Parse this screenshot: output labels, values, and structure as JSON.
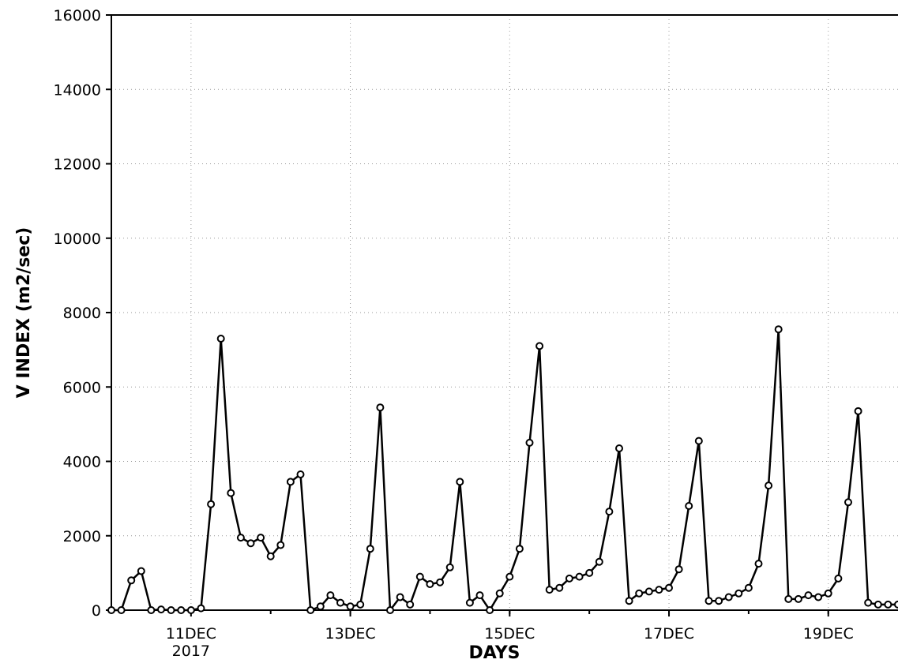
{
  "chart_data": {
    "type": "line",
    "xlabel": "DAYS",
    "ylabel": "V INDEX (m2/sec)",
    "x_start": "2017-12-10T00:00",
    "x_end": "2017-12-19T21:00",
    "x_step_hours": 3,
    "x_ticks": [
      {
        "date": "2017-12-11",
        "label": "11DEC",
        "sublabel": "2017"
      },
      {
        "date": "2017-12-13",
        "label": "13DEC"
      },
      {
        "date": "2017-12-15",
        "label": "15DEC"
      },
      {
        "date": "2017-12-17",
        "label": "17DEC"
      },
      {
        "date": "2017-12-19",
        "label": "19DEC"
      }
    ],
    "ylim": [
      0,
      16000
    ],
    "y_ticks": [
      0,
      2000,
      4000,
      6000,
      8000,
      10000,
      12000,
      14000,
      16000
    ],
    "grid": true,
    "series": [
      {
        "values": [
          0,
          0,
          800,
          1050,
          0,
          20,
          0,
          0,
          0,
          50,
          2850,
          7300,
          3150,
          1950,
          1800,
          1950,
          1450,
          1750,
          3450,
          3650,
          0,
          100,
          400,
          200,
          100,
          150,
          1650,
          5450,
          0,
          350,
          150,
          900,
          700,
          750,
          1150,
          3450,
          200,
          400,
          0,
          450,
          900,
          1650,
          4500,
          7100,
          550,
          600,
          850,
          900,
          1000,
          1300,
          2650,
          4350,
          250,
          450,
          500,
          550,
          600,
          1100,
          2800,
          4550,
          250,
          250,
          350,
          450,
          600,
          1250,
          3350,
          7550,
          300,
          300,
          400,
          350,
          450,
          850,
          2900,
          5350,
          200,
          150,
          150,
          150
        ]
      }
    ]
  }
}
